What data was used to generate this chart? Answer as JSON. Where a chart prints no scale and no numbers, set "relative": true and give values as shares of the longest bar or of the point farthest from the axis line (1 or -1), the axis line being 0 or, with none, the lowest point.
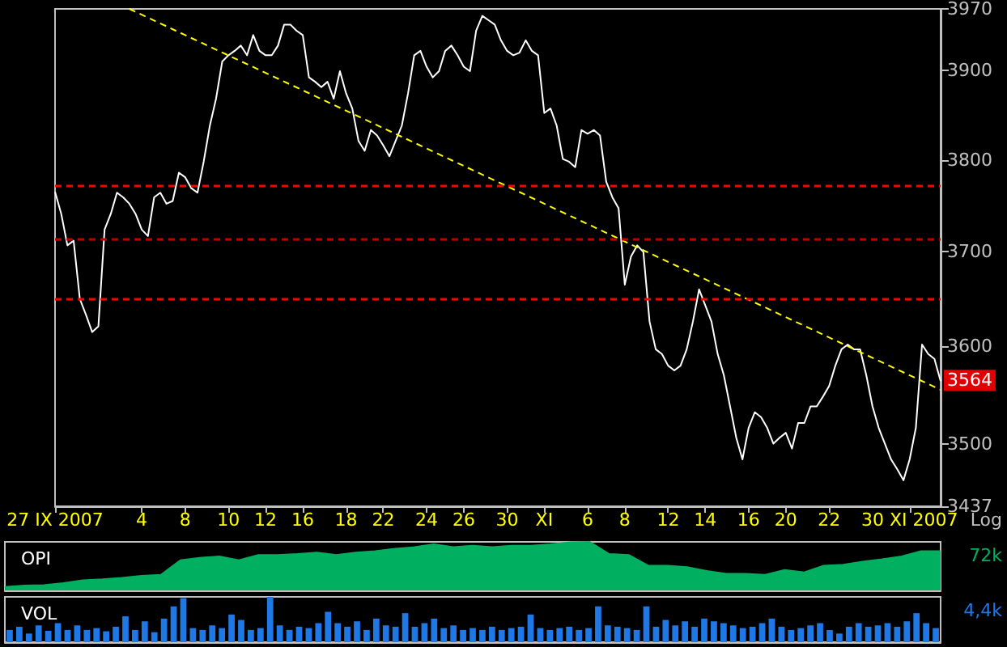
{
  "chart_data": [
    {
      "type": "line",
      "log": "y",
      "ylim": [
        3437,
        3970
      ],
      "yticks": [
        3437,
        3500,
        3600,
        3700,
        3800,
        3900,
        3970
      ],
      "grid": false,
      "marker": "none",
      "categories": [
        "27 IX 2007",
        null,
        null,
        null,
        null,
        null,
        null,
        null,
        null,
        null,
        null,
        null,
        null,
        null,
        "4",
        null,
        null,
        null,
        null,
        null,
        null,
        "8",
        null,
        null,
        null,
        null,
        null,
        null,
        "10",
        null,
        null,
        null,
        null,
        null,
        "12",
        null,
        null,
        null,
        null,
        null,
        "16",
        null,
        null,
        null,
        null,
        null,
        null,
        "18",
        null,
        null,
        null,
        null,
        null,
        "22",
        null,
        null,
        null,
        null,
        null,
        null,
        "24",
        null,
        null,
        null,
        null,
        null,
        "26",
        null,
        null,
        null,
        null,
        null,
        null,
        "30",
        null,
        null,
        null,
        null,
        null,
        "XI",
        null,
        null,
        null,
        null,
        null,
        null,
        "6",
        null,
        null,
        null,
        null,
        null,
        "8",
        null,
        null,
        null,
        null,
        null,
        null,
        "12",
        null,
        null,
        null,
        null,
        null,
        "14",
        null,
        null,
        null,
        null,
        null,
        null,
        "16",
        null,
        null,
        null,
        null,
        null,
        "20",
        null,
        null,
        null,
        null,
        null,
        null,
        "22",
        null,
        null,
        null,
        null,
        null,
        null,
        null,
        null,
        null,
        null,
        null,
        null,
        "30 XI 2007",
        null,
        null,
        null,
        null,
        null
      ],
      "series": [
        {
          "type": "line",
          "color": "#ffffff",
          "line_style": "solid",
          "values": [
            3765,
            3741,
            3707,
            3712,
            3650,
            3633,
            3615,
            3621,
            3724,
            3741,
            3764,
            3759,
            3752,
            3741,
            3724,
            3717,
            3759,
            3764,
            3752,
            3755,
            3786,
            3781,
            3769,
            3764,
            3798,
            3838,
            3868,
            3910,
            3917,
            3922,
            3928,
            3917,
            3940,
            3922,
            3917,
            3917,
            3928,
            3952,
            3952,
            3945,
            3940,
            3892,
            3887,
            3881,
            3887,
            3868,
            3899,
            3874,
            3857,
            3821,
            3810,
            3833,
            3827,
            3816,
            3804,
            3821,
            3838,
            3874,
            3917,
            3922,
            3904,
            3892,
            3899,
            3922,
            3928,
            3917,
            3904,
            3899,
            3945,
            3962,
            3957,
            3952,
            3934,
            3922,
            3917,
            3920,
            3934,
            3922,
            3917,
            3852,
            3857,
            3838,
            3801,
            3798,
            3792,
            3833,
            3829,
            3833,
            3827,
            3776,
            3759,
            3747,
            3665,
            3695,
            3707,
            3700,
            3626,
            3597,
            3592,
            3580,
            3575,
            3580,
            3597,
            3626,
            3660,
            3643,
            3626,
            3592,
            3570,
            3538,
            3506,
            3484,
            3516,
            3532,
            3527,
            3516,
            3500,
            3506,
            3511,
            3495,
            3521,
            3521,
            3538,
            3538,
            3548,
            3559,
            3580,
            3597,
            3602,
            3597,
            3597,
            3570,
            3538,
            3516,
            3500,
            3484,
            3474,
            3463,
            3484,
            3516,
            3602,
            3592,
            3587,
            3564
          ]
        },
        {
          "type": "line",
          "color": "#ffff00",
          "line_style": "dashed",
          "values": [
            null,
            null,
            null,
            null,
            null,
            null,
            null,
            null,
            null,
            null,
            null,
            null,
            3970,
            null,
            null,
            null,
            null,
            null,
            null,
            null,
            null,
            null,
            null,
            null,
            null,
            null,
            null,
            null,
            null,
            null,
            null,
            null,
            null,
            null,
            null,
            null,
            null,
            null,
            null,
            null,
            null,
            null,
            null,
            null,
            null,
            null,
            null,
            null,
            null,
            null,
            null,
            null,
            null,
            null,
            null,
            null,
            null,
            null,
            null,
            null,
            null,
            null,
            null,
            null,
            null,
            null,
            null,
            null,
            null,
            null,
            null,
            null,
            null,
            null,
            null,
            null,
            null,
            null,
            null,
            null,
            null,
            null,
            null,
            null,
            null,
            null,
            null,
            null,
            null,
            null,
            null,
            null,
            null,
            null,
            null,
            null,
            null,
            null,
            null,
            null,
            null,
            null,
            null,
            null,
            null,
            null,
            null,
            null,
            null,
            null,
            null,
            null,
            null,
            null,
            null,
            null,
            null,
            null,
            null,
            null,
            null,
            null,
            null,
            null,
            null,
            null,
            null,
            null,
            null,
            null,
            null,
            null,
            null,
            null,
            null,
            null,
            null,
            null,
            null,
            null,
            null,
            null,
            null,
            3555
          ]
        }
      ],
      "ref_lines": [
        {
          "axis": "y",
          "value": 3772,
          "color": "#ff0000",
          "line_style": "dashed"
        },
        {
          "axis": "y",
          "value": 3713,
          "color": "#c00000",
          "line_style": "dashed"
        },
        {
          "axis": "y",
          "value": 3650,
          "color": "#ff0000",
          "line_style": "dashed"
        }
      ],
      "annotations": [
        {
          "text": "3564",
          "y": 3564
        },
        "Log"
      ]
    },
    {
      "type": "area",
      "title": "OPI",
      "relative": true,
      "tick_labels": false,
      "color": "#00b060",
      "categories": [
        null,
        null,
        null,
        null,
        null,
        null,
        null,
        null,
        null,
        null,
        null,
        null,
        null,
        null,
        null,
        null,
        null,
        null,
        null,
        null,
        null,
        null,
        null,
        null,
        null,
        null,
        null,
        null,
        null,
        null,
        null,
        null,
        null,
        null,
        null,
        null,
        null,
        null,
        null,
        null,
        null,
        null,
        null,
        null,
        null,
        null,
        null,
        null,
        null
      ],
      "values": [
        0.07,
        0.1,
        0.11,
        0.15,
        0.21,
        0.23,
        0.26,
        0.3,
        0.32,
        0.62,
        0.67,
        0.7,
        0.62,
        0.73,
        0.73,
        0.75,
        0.78,
        0.73,
        0.78,
        0.81,
        0.86,
        0.89,
        0.95,
        0.89,
        0.92,
        0.89,
        0.92,
        0.92,
        0.95,
        0.99,
        1,
        0.75,
        0.73,
        0.51,
        0.51,
        0.48,
        0.4,
        0.34,
        0.34,
        0.32,
        0.42,
        0.37,
        0.51,
        0.53,
        0.59,
        0.64,
        0.7,
        0.81,
        0.81
      ],
      "annotations": [
        "72k"
      ]
    },
    {
      "type": "bar",
      "title": "VOL",
      "relative": true,
      "tick_labels": false,
      "color": "#1e78e6",
      "categories": [
        null,
        null,
        null,
        null,
        null,
        null,
        null,
        null,
        null,
        null,
        null,
        null,
        null,
        null,
        null,
        null,
        null,
        null,
        null,
        null,
        null,
        null,
        null,
        null,
        null,
        null,
        null,
        null,
        null,
        null,
        null,
        null,
        null,
        null,
        null,
        null,
        null,
        null,
        null,
        null,
        null,
        null,
        null,
        null,
        null,
        null,
        null,
        null,
        null,
        null,
        null,
        null,
        null,
        null,
        null,
        null,
        null,
        null,
        null,
        null,
        null,
        null,
        null,
        null,
        null,
        null,
        null,
        null,
        null,
        null,
        null,
        null,
        null,
        null,
        null,
        null,
        null,
        null,
        null,
        null,
        null,
        null,
        null,
        null,
        null,
        null,
        null,
        null,
        null,
        null,
        null,
        null,
        null,
        null,
        null,
        null,
        null
      ],
      "values": [
        0.27,
        0.34,
        0.19,
        0.37,
        0.25,
        0.42,
        0.27,
        0.37,
        0.27,
        0.31,
        0.24,
        0.34,
        0.57,
        0.27,
        0.46,
        0.22,
        0.52,
        0.79,
        0.97,
        0.31,
        0.27,
        0.37,
        0.31,
        0.61,
        0.49,
        0.27,
        0.31,
        1,
        0.37,
        0.27,
        0.34,
        0.31,
        0.42,
        0.67,
        0.42,
        0.34,
        0.46,
        0.27,
        0.52,
        0.37,
        0.34,
        0.64,
        0.34,
        0.42,
        0.52,
        0.31,
        0.37,
        0.27,
        0.31,
        0.27,
        0.34,
        0.27,
        0.31,
        0.34,
        0.61,
        0.31,
        0.27,
        0.31,
        0.34,
        0.27,
        0.31,
        0.79,
        0.37,
        0.34,
        0.31,
        0.27,
        0.79,
        0.34,
        0.49,
        0.37,
        0.46,
        0.34,
        0.52,
        0.46,
        0.42,
        0.37,
        0.31,
        0.34,
        0.42,
        0.52,
        0.34,
        0.27,
        0.31,
        0.37,
        0.42,
        0.27,
        0.19,
        0.34,
        0.42,
        0.34,
        0.37,
        0.42,
        0.34,
        0.46,
        0.64,
        0.42,
        0.31
      ],
      "annotations": [
        "4,4k"
      ]
    }
  ]
}
